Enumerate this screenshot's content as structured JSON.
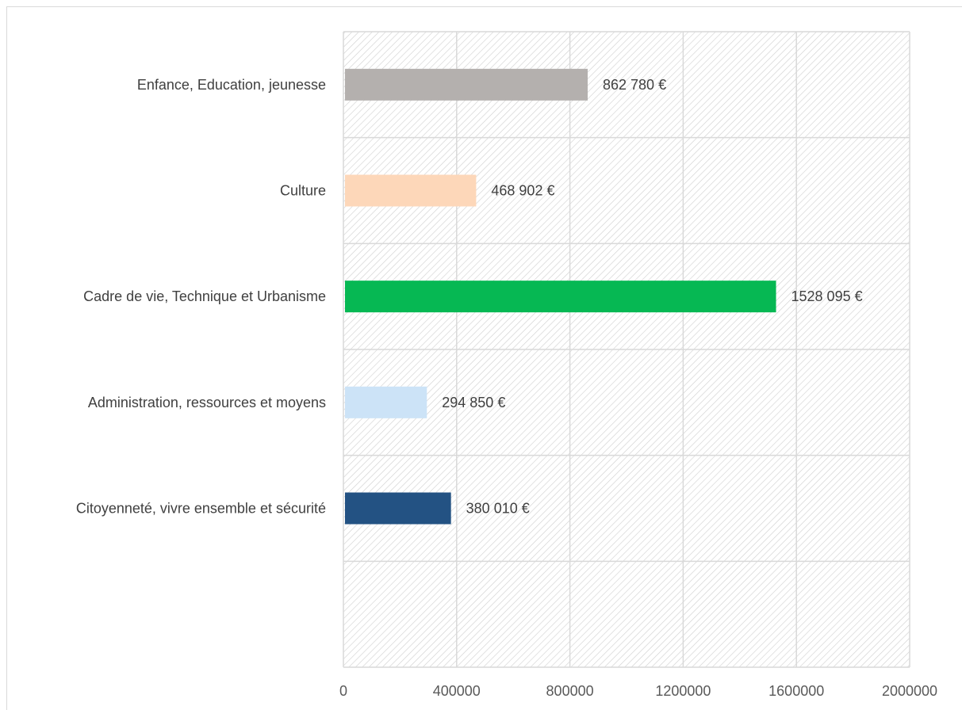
{
  "chart_data": {
    "type": "bar",
    "orientation": "horizontal",
    "categories": [
      "Enfance, Education, jeunesse",
      "Culture",
      "Cadre de vie, Technique et Urbanisme",
      "Administration, ressources et moyens",
      "Citoyenneté, vivre ensemble et sécurité"
    ],
    "values": [
      862780,
      468902,
      1528095,
      294850,
      380010
    ],
    "data_labels": [
      "862 780 €",
      "468 902 €",
      "1528 095 €",
      "294 850 €",
      "380 010 €"
    ],
    "colors": [
      "#b4b0ae",
      "#fdd7b9",
      "#06b853",
      "#cce3f7",
      "#235283"
    ],
    "xlim": [
      0,
      2000000
    ],
    "x_ticks": [
      "0",
      "400000",
      "800000",
      "1200000",
      "1600000",
      "2000000"
    ],
    "title": "",
    "xlabel": "",
    "ylabel": "",
    "grid": true,
    "background_pattern": "diagonal-hatch",
    "legend": "none"
  }
}
